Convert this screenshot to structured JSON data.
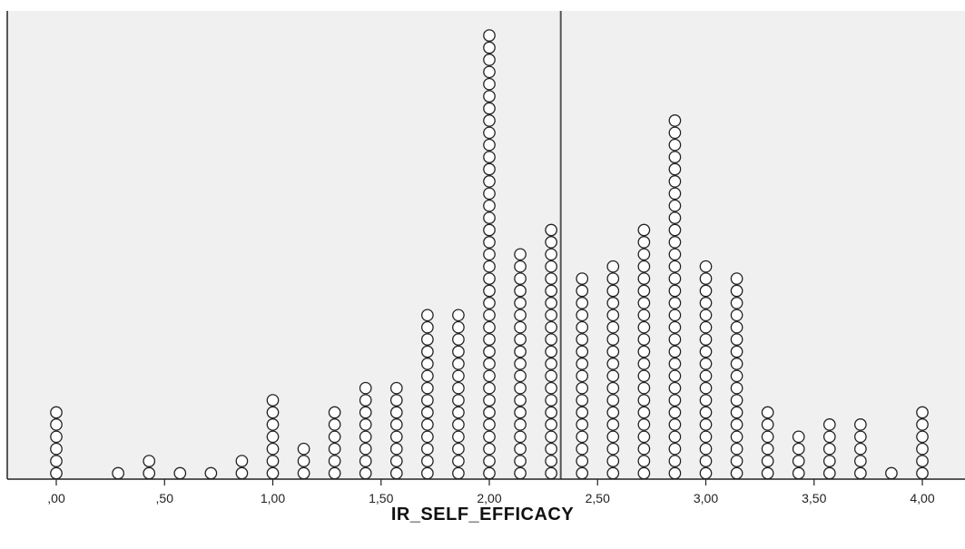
{
  "chart_data": {
    "type": "scatter",
    "subtype": "dot-plot",
    "title": "",
    "xlabel": "IR_SELF_EFFICACY",
    "ylabel": "",
    "xlim": [
      -0.07,
      4.07
    ],
    "x_ticks": [
      0,
      0.5,
      1,
      1.5,
      2,
      2.5,
      3,
      3.5,
      4
    ],
    "x_tick_labels": [
      ",00",
      ",50",
      "1,00",
      "1,50",
      "2,00",
      "2,50",
      "3,00",
      "3,50",
      "4,00"
    ],
    "reference_line_x": 2.33,
    "grid": false,
    "legend": "none",
    "colors": {
      "plot_background": "#f0f0f0",
      "marker_fill": "#ffffff",
      "marker_stroke": "#222222",
      "reference_line": "#555555",
      "axis": "#222222"
    },
    "points": [
      {
        "x": 0.0,
        "count": 6
      },
      {
        "x": 0.2857,
        "count": 1
      },
      {
        "x": 0.4286,
        "count": 2
      },
      {
        "x": 0.5714,
        "count": 1
      },
      {
        "x": 0.7143,
        "count": 1
      },
      {
        "x": 0.8571,
        "count": 2
      },
      {
        "x": 1.0,
        "count": 7
      },
      {
        "x": 1.1429,
        "count": 3
      },
      {
        "x": 1.2857,
        "count": 6
      },
      {
        "x": 1.4286,
        "count": 8
      },
      {
        "x": 1.5714,
        "count": 8
      },
      {
        "x": 1.7143,
        "count": 14
      },
      {
        "x": 1.8571,
        "count": 14
      },
      {
        "x": 2.0,
        "count": 37
      },
      {
        "x": 2.1429,
        "count": 19
      },
      {
        "x": 2.2857,
        "count": 21
      },
      {
        "x": 2.4286,
        "count": 17
      },
      {
        "x": 2.5714,
        "count": 18
      },
      {
        "x": 2.7143,
        "count": 21
      },
      {
        "x": 2.8571,
        "count": 30
      },
      {
        "x": 3.0,
        "count": 18
      },
      {
        "x": 3.1429,
        "count": 17
      },
      {
        "x": 3.2857,
        "count": 6
      },
      {
        "x": 3.4286,
        "count": 4
      },
      {
        "x": 3.5714,
        "count": 5
      },
      {
        "x": 3.7143,
        "count": 5
      },
      {
        "x": 3.8571,
        "count": 1
      },
      {
        "x": 4.0,
        "count": 6
      }
    ]
  }
}
